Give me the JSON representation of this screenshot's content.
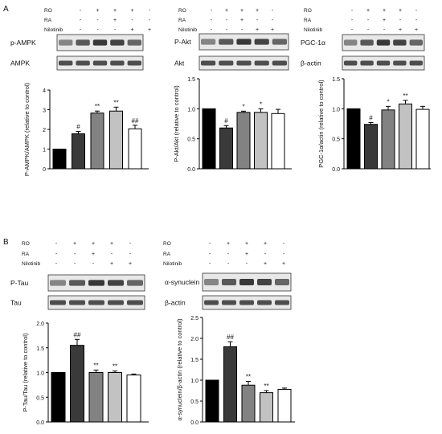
{
  "panel_labels": [
    "A",
    "B"
  ],
  "treatment_rows": [
    "RO",
    "RA",
    "Nilotinib"
  ],
  "treatment_signs": {
    "RO": [
      "-",
      "+",
      "+",
      "+",
      "-"
    ],
    "RA": [
      "-",
      "-",
      "+",
      "-",
      "-"
    ],
    "Nilotinib": [
      "-",
      "-",
      "-",
      "+",
      "+"
    ]
  },
  "colors": {
    "bar_fills": [
      "#000000",
      "#3a3a3a",
      "#828282",
      "#c2c2c2",
      "#ffffff"
    ],
    "bar_stroke": "#000000"
  },
  "chart_data": [
    {
      "type": "bar",
      "panel": "A",
      "blots": [
        "p-AMPK",
        "AMPK"
      ],
      "ylabel": "P-AMPK/AMPK (relative to control)",
      "ylim": [
        0,
        4
      ],
      "yticks": [
        "0",
        "1",
        "2",
        "3",
        "4"
      ],
      "values": [
        1.0,
        1.78,
        2.83,
        2.93,
        2.03
      ],
      "errors": [
        0,
        0.12,
        0.1,
        0.2,
        0.18
      ],
      "annotations": [
        "",
        "#",
        "**",
        "**",
        "##"
      ]
    },
    {
      "type": "bar",
      "panel": "A",
      "blots": [
        "P-Akt",
        "Akt"
      ],
      "ylabel": "P-Akt/Akt (relative to control)",
      "ylim": [
        0,
        1.5
      ],
      "yticks": [
        "0.0",
        "0.5",
        "1.0",
        "1.5"
      ],
      "values": [
        1.0,
        0.68,
        0.94,
        0.94,
        0.92
      ],
      "errors": [
        0,
        0.04,
        0.02,
        0.06,
        0.07
      ],
      "annotations": [
        "",
        "#",
        "*",
        "*",
        ""
      ]
    },
    {
      "type": "bar",
      "panel": "A",
      "blots": [
        "PGC-1α",
        "β-actin"
      ],
      "ylabel": "PGC-1α/actin (relative to control)",
      "ylim": [
        0,
        1.5
      ],
      "yticks": [
        "0.0",
        "0.5",
        "1.0",
        "1.5"
      ],
      "values": [
        1.0,
        0.74,
        0.98,
        1.08,
        0.99
      ],
      "errors": [
        0,
        0.03,
        0.06,
        0.06,
        0.05
      ],
      "annotations": [
        "",
        "#",
        "*",
        "**",
        ""
      ]
    },
    {
      "type": "bar",
      "panel": "B",
      "blots": [
        "P-Tau",
        "Tau"
      ],
      "ylabel": "P-Tau/Tau (relative to control)",
      "ylim": [
        0,
        2.0
      ],
      "yticks": [
        "0.0",
        "0.5",
        "1.0",
        "1.5",
        "2.0"
      ],
      "values": [
        1.0,
        1.55,
        1.0,
        1.0,
        0.95
      ],
      "errors": [
        0,
        0.12,
        0.05,
        0.03,
        0.02
      ],
      "annotations": [
        "",
        "##",
        "**",
        "**",
        ""
      ]
    },
    {
      "type": "bar",
      "panel": "B",
      "blots": [
        "α-synuclein",
        "β-actin"
      ],
      "ylabel": "α-synuclein/β-actin (relative to control)",
      "ylim": [
        0,
        2.5
      ],
      "yticks": [
        "0.0",
        "0.5",
        "1.0",
        "1.5",
        "2.0",
        "2.5"
      ],
      "values": [
        1.0,
        1.8,
        0.88,
        0.7,
        0.78
      ],
      "errors": [
        0,
        0.12,
        0.09,
        0.05,
        0.03
      ],
      "annotations": [
        "",
        "##",
        "**",
        "**",
        ""
      ]
    }
  ]
}
